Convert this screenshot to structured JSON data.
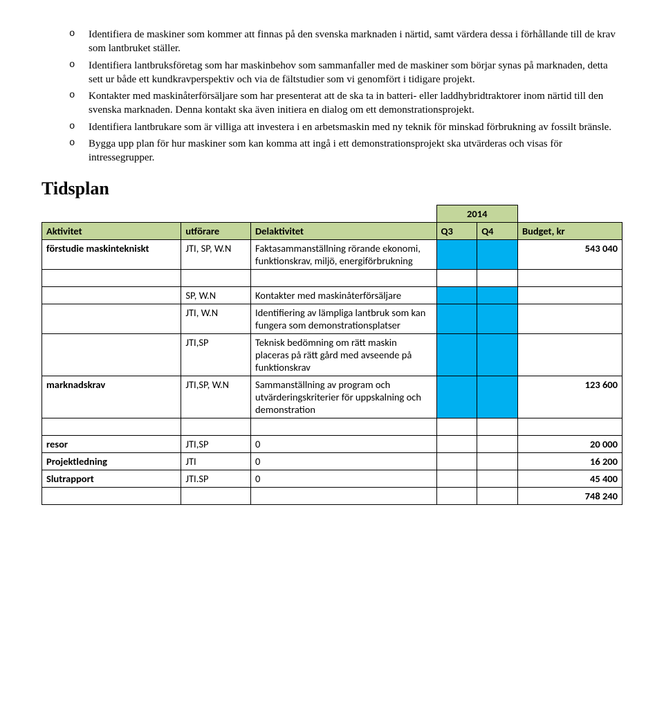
{
  "bullets": [
    "Identifiera de maskiner som kommer att finnas på den svenska marknaden i närtid, samt värdera dessa i förhållande till de krav som lantbruket ställer.",
    "Identifiera lantbruksföretag som har maskinbehov som sammanfaller med de maskiner som börjar synas på marknaden, detta sett ur både ett kundkravperspektiv och via de fältstudier som vi genomfört i tidigare projekt.",
    "Kontakter med maskinåterförsäljare som har presenterat att de ska ta in batteri- eller laddhybridtraktorer inom närtid till den svenska marknaden. Denna kontakt ska även initiera en dialog om ett demonstrationsprojekt.",
    "Identifiera lantbrukare som är villiga att investera i en arbetsmaskin med ny teknik för minskad förbrukning av fossilt bränsle.",
    "Bygga upp plan för hur maskiner som kan komma att ingå i ett demonstrationsprojekt ska utvärderas och visas för intressegrupper."
  ],
  "section_heading": "Tidsplan",
  "table": {
    "year_header": "2014",
    "columns": [
      "Aktivitet",
      "utförare",
      "Delaktivitet",
      "Q3",
      "Q4",
      "Budget, kr"
    ],
    "header_bg": "#c3d69b",
    "gantt_fill": "#00b0f0",
    "col_widths_pct": [
      24,
      12,
      32,
      7,
      7,
      18
    ],
    "rows": [
      {
        "aktivitet": "förstudie maskintekniskt",
        "utforare": "JTI, SP, W.N",
        "del": "Faktasammanställning rörande ekonomi, funktionskrav, miljö, energiförbrukning",
        "q3": true,
        "q4": true,
        "budget": "543 040",
        "bold": true
      },
      {
        "aktivitet": "",
        "utforare": "",
        "del": "",
        "q3": null,
        "q4": null,
        "budget": "",
        "spacer": true
      },
      {
        "aktivitet": "",
        "utforare": "SP, W.N",
        "del": "Kontakter med maskinåterförsäljare",
        "q3": true,
        "q4": true,
        "budget": ""
      },
      {
        "aktivitet": "",
        "utforare": "JTI, W.N",
        "del": "Identifiering av lämpliga lantbruk som kan fungera som demonstrationsplatser",
        "q3": true,
        "q4": true,
        "budget": ""
      },
      {
        "aktivitet": "",
        "utforare": "JTI,SP",
        "del": "Teknisk bedömning om rätt maskin placeras på rätt gård med avseende på funktionskrav",
        "q3": true,
        "q4": true,
        "budget": ""
      },
      {
        "aktivitet": "marknadskrav",
        "utforare": "JTI,SP, W.N",
        "del": "Sammanställning av program och utvärderingskriterier för uppskalning och demonstration",
        "q3": true,
        "q4": true,
        "budget": "123 600",
        "bold": true
      },
      {
        "aktivitet": "",
        "utforare": "",
        "del": "",
        "q3": null,
        "q4": null,
        "budget": "",
        "spacer": true
      },
      {
        "aktivitet": "resor",
        "utforare": "JTI,SP",
        "del": "0",
        "q3": null,
        "q4": null,
        "budget": "20 000",
        "bold": true
      },
      {
        "aktivitet": "Projektledning",
        "utforare": "JTI",
        "del": "0",
        "q3": null,
        "q4": null,
        "budget": "16 200",
        "bold": true
      },
      {
        "aktivitet": "Slutrapport",
        "utforare": "JTI.SP",
        "del": "0",
        "q3": null,
        "q4": null,
        "budget": "45 400",
        "bold": true
      },
      {
        "aktivitet": "",
        "utforare": "",
        "del": "",
        "q3": null,
        "q4": null,
        "budget": "748 240",
        "total": true
      }
    ]
  }
}
